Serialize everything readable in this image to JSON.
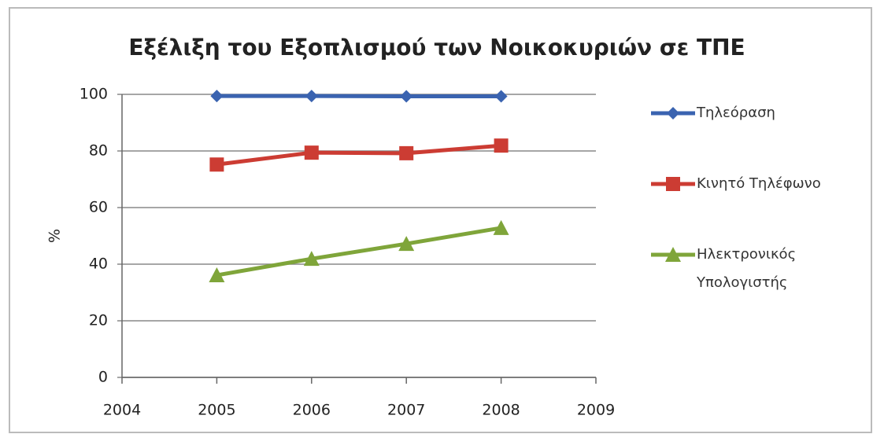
{
  "chart_data": {
    "type": "line",
    "title": "Εξέλιξη του Εξοπλισμού των Νοικοκυριών σε ΤΠΕ",
    "y_label": "%",
    "x": [
      2005,
      2006,
      2007,
      2008
    ],
    "xlim": [
      2004,
      2009
    ],
    "xticks": [
      2004,
      2005,
      2006,
      2007,
      2008,
      2009
    ],
    "ylim": [
      0,
      100
    ],
    "yticks": [
      0,
      20,
      40,
      60,
      80,
      100
    ],
    "grid": true,
    "legend": "right",
    "series": [
      {
        "name": "Τηλεόραση",
        "color": "#3a63b0",
        "marker": "diamond",
        "values": [
          99.4,
          99.4,
          99.3,
          99.3
        ]
      },
      {
        "name": "Κινητό Τηλέφωνο",
        "color": "#cc3c33",
        "marker": "square",
        "values": [
          75.2,
          79.4,
          79.2,
          81.9
        ]
      },
      {
        "name": "Ηλεκτρονικός Υπολογιστής",
        "color": "#7fa53a",
        "marker": "triangle",
        "values": [
          36.1,
          41.9,
          47.2,
          52.8
        ]
      }
    ]
  }
}
